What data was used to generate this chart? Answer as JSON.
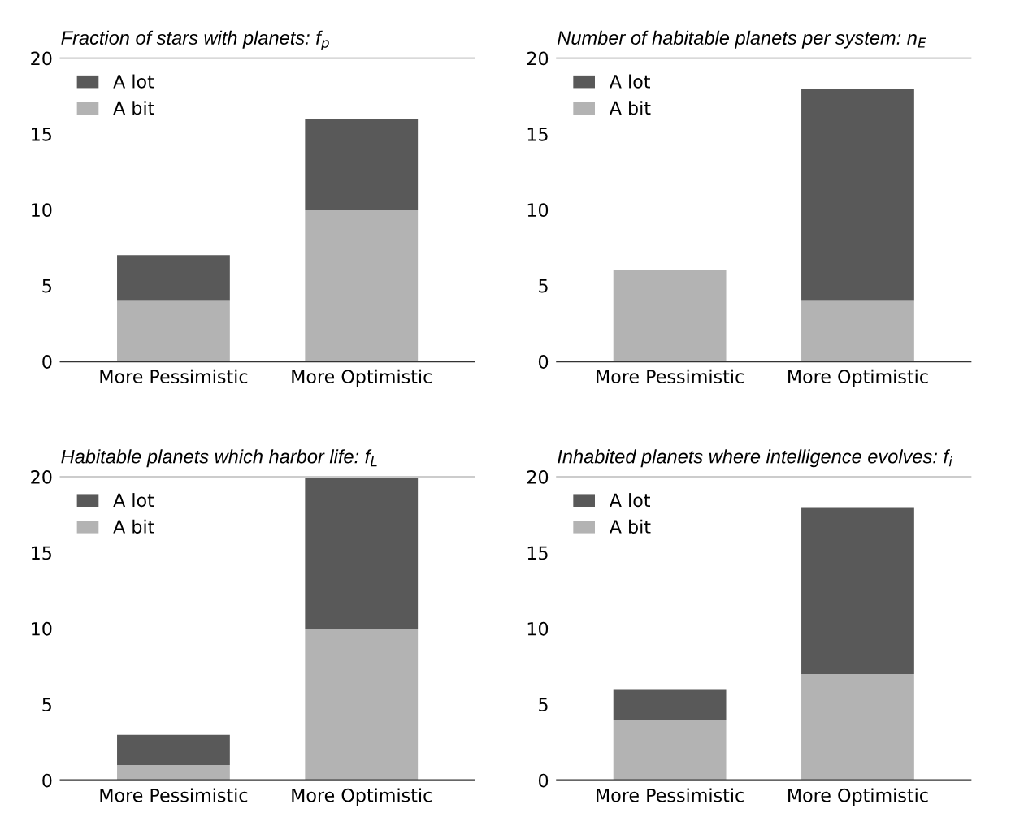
{
  "chart_data": [
    {
      "type": "bar",
      "stacked": true,
      "title": "Fraction of stars with planets: f$_{p}$",
      "categories": [
        "More Pessimistic",
        "More Optimistic"
      ],
      "ylim": [
        0,
        20
      ],
      "yticks": [
        0,
        5,
        10,
        15,
        20
      ],
      "legend": "top left",
      "series": [
        {
          "name": "A bit",
          "color": "#b3b3b3",
          "values": [
            4,
            10
          ]
        },
        {
          "name": "A lot",
          "color": "#595959",
          "values": [
            3,
            6
          ]
        }
      ]
    },
    {
      "type": "bar",
      "stacked": true,
      "title": "Number of habitable planets per system: n$_{E}$",
      "categories": [
        "More Pessimistic",
        "More Optimistic"
      ],
      "ylim": [
        0,
        20
      ],
      "yticks": [
        0,
        5,
        10,
        15,
        20
      ],
      "legend": "top left",
      "series": [
        {
          "name": "A bit",
          "color": "#b3b3b3",
          "values": [
            6,
            4
          ]
        },
        {
          "name": "A lot",
          "color": "#595959",
          "values": [
            0,
            14
          ]
        }
      ]
    },
    {
      "type": "bar",
      "stacked": true,
      "title": "Habitable planets which harbor life: f$_{L}$",
      "categories": [
        "More Pessimistic",
        "More Optimistic"
      ],
      "ylim": [
        0,
        20
      ],
      "yticks": [
        0,
        5,
        10,
        15,
        20
      ],
      "legend": "top left",
      "series": [
        {
          "name": "A bit",
          "color": "#b3b3b3",
          "values": [
            1,
            10
          ]
        },
        {
          "name": "A lot",
          "color": "#595959",
          "values": [
            2,
            10
          ]
        }
      ]
    },
    {
      "type": "bar",
      "stacked": true,
      "title": "Inhabited planets where intelligence evolves: f$_{i}$",
      "categories": [
        "More Pessimistic",
        "More Optimistic"
      ],
      "ylim": [
        0,
        20
      ],
      "yticks": [
        0,
        5,
        10,
        15,
        20
      ],
      "legend": "top left",
      "series": [
        {
          "name": "A bit",
          "color": "#b3b3b3",
          "values": [
            4,
            7
          ]
        },
        {
          "name": "A lot",
          "color": "#595959",
          "values": [
            2,
            11
          ]
        }
      ]
    }
  ]
}
